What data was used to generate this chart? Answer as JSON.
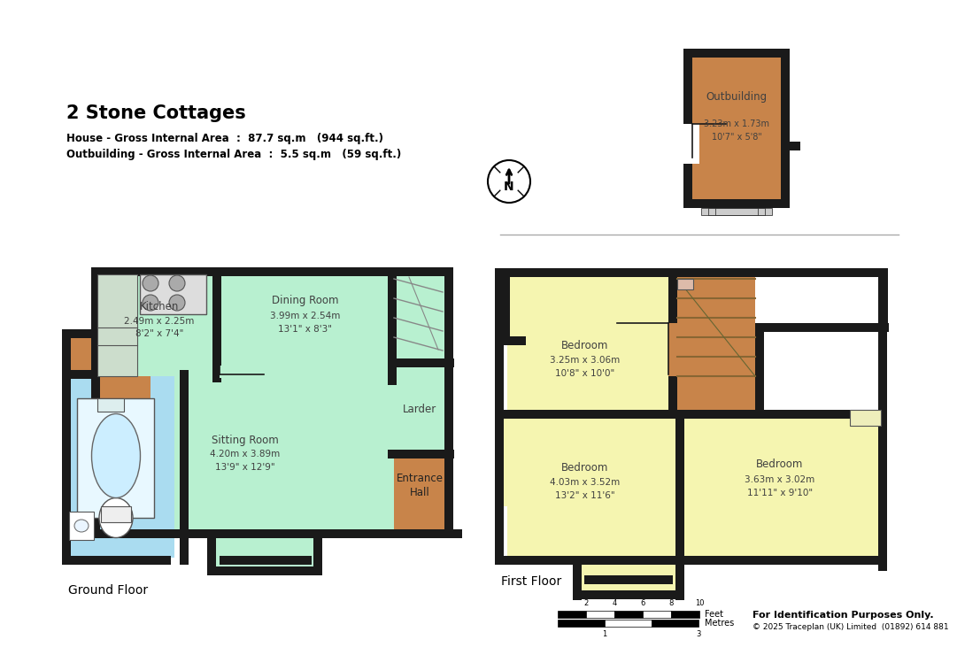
{
  "title": "2 Stone Cottages",
  "subtitle1": "House - Gross Internal Area  :  87.7 sq.m   (944 sq.ft.)",
  "subtitle2": "Outbuilding - Gross Internal Area  :  5.5 sq.m   (59 sq.ft.)",
  "footer_left": "Ground Floor",
  "footer_right": "First Floor",
  "scale_label": "For Identification Purposes Only.",
  "copyright": "© 2025 Traceplan (UK) Limited  (01892) 614 881",
  "bg_color": "#ffffff",
  "wall_color": "#1a1a1a",
  "green_fill": "#b8f0d0",
  "brown_fill": "#c8844a",
  "blue_fill": "#aadcf0",
  "yellow_fill": "#f5f5b0",
  "wall_lw": 8
}
